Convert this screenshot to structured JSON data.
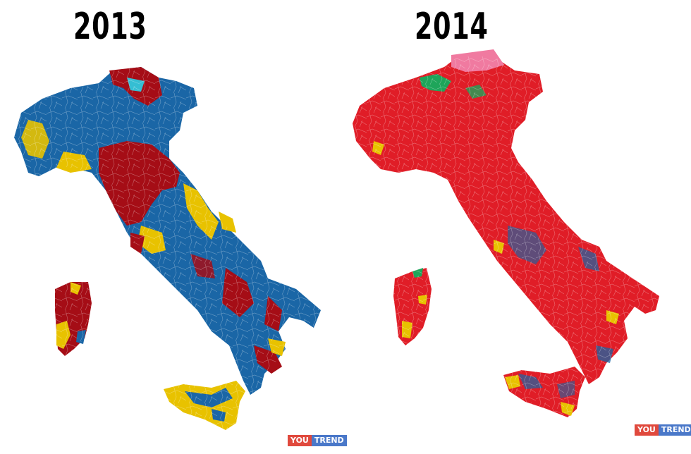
{
  "panels": [
    {
      "year": "2013"
    },
    {
      "year": "2014"
    }
  ],
  "logo": {
    "you": "YOU",
    "trend": "TREND"
  },
  "colors": {
    "red": "#a50d16",
    "blue": "#1a66a6",
    "yellow": "#e8c200",
    "bright_red": "#e01d27",
    "pink": "#f07aa0",
    "green": "#1ea55a",
    "cyan": "#29d2e8"
  }
}
